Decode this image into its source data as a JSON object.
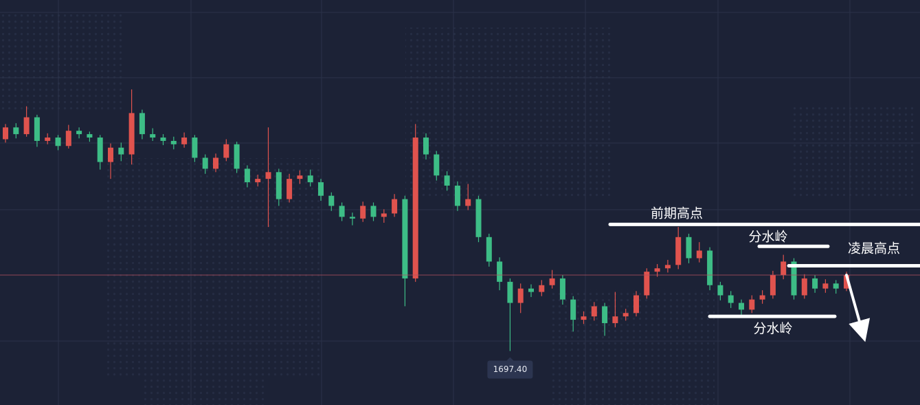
{
  "chart_data": {
    "type": "candlestick",
    "ylim": [
      1691,
      1739
    ],
    "up_color": "#e0534e",
    "down_color": "#3dbd86",
    "open": [
      1722.5,
      1723.9,
      1723.1,
      1725.1,
      1722.3,
      1722.7,
      1721.7,
      1723.5,
      1723.1,
      1722.7,
      1719.8,
      1721.5,
      1720.7,
      1725.6,
      1723.1,
      1722.7,
      1722.3,
      1721.9,
      1722.7,
      1720.3,
      1719.0,
      1720.3,
      1721.9,
      1719.0,
      1717.4,
      1717.8,
      1718.6,
      1715.4,
      1717.8,
      1718.2,
      1717.4,
      1715.8,
      1714.6,
      1713.3,
      1713.1,
      1714.6,
      1713.3,
      1713.7,
      1715.4,
      1706.0,
      1722.7,
      1720.7,
      1718.2,
      1717.0,
      1714.6,
      1715.4,
      1710.9,
      1708.0,
      1705.6,
      1703.1,
      1704.8,
      1704.4,
      1705.2,
      1706.0,
      1703.5,
      1701.1,
      1701.5,
      1702.7,
      1700.7,
      1701.5,
      1701.9,
      1704.0,
      1706.8,
      1707.2,
      1707.6,
      1710.9,
      1708.4,
      1709.3,
      1705.2,
      1704.0,
      1703.1,
      1702.3,
      1703.5,
      1704.0,
      1706.4,
      1708.0,
      1704.0,
      1706.0,
      1704.8,
      1705.4,
      1704.8
    ],
    "high": [
      1724.3,
      1724.4,
      1726.4,
      1725.4,
      1723.2,
      1723.0,
      1724.2,
      1723.9,
      1723.4,
      1723.0,
      1722.0,
      1722.1,
      1728.4,
      1726.0,
      1723.8,
      1723.1,
      1722.8,
      1723.3,
      1723.0,
      1720.7,
      1720.8,
      1722.5,
      1722.2,
      1719.4,
      1718.3,
      1723.9,
      1719.0,
      1718.4,
      1718.8,
      1718.9,
      1717.8,
      1716.2,
      1715.0,
      1713.8,
      1715.1,
      1715.0,
      1714.2,
      1716.0,
      1715.8,
      1724.3,
      1723.2,
      1721.1,
      1718.7,
      1717.5,
      1717.2,
      1715.8,
      1711.3,
      1708.5,
      1706.0,
      1705.4,
      1705.3,
      1705.8,
      1707.0,
      1706.4,
      1703.9,
      1702.1,
      1703.2,
      1703.1,
      1704.4,
      1702.4,
      1704.5,
      1707.2,
      1707.7,
      1708.2,
      1712.1,
      1711.3,
      1710.3,
      1709.7,
      1705.6,
      1704.5,
      1703.5,
      1704.0,
      1704.6,
      1706.9,
      1708.8,
      1708.4,
      1706.5,
      1706.4,
      1705.9,
      1705.8,
      1706.8
    ],
    "low": [
      1722.1,
      1722.6,
      1722.8,
      1721.6,
      1721.9,
      1721.2,
      1721.4,
      1722.6,
      1722.2,
      1718.9,
      1717.8,
      1719.9,
      1719.5,
      1722.5,
      1722.3,
      1721.8,
      1721.3,
      1721.5,
      1719.8,
      1718.4,
      1718.6,
      1719.9,
      1718.5,
      1716.8,
      1716.9,
      1712.1,
      1714.6,
      1715.0,
      1717.2,
      1716.9,
      1715.2,
      1714.0,
      1712.8,
      1712.3,
      1712.7,
      1712.8,
      1712.6,
      1713.3,
      1702.7,
      1705.6,
      1720.1,
      1717.6,
      1716.4,
      1714.0,
      1714.1,
      1710.3,
      1707.4,
      1704.6,
      1697.4,
      1701.9,
      1703.8,
      1703.9,
      1704.8,
      1702.9,
      1699.7,
      1700.6,
      1701.0,
      1699.2,
      1700.2,
      1701.0,
      1701.5,
      1703.6,
      1706.2,
      1706.7,
      1707.1,
      1707.8,
      1707.9,
      1704.6,
      1703.4,
      1702.5,
      1701.7,
      1701.9,
      1703.0,
      1703.6,
      1705.9,
      1703.5,
      1703.6,
      1704.3,
      1704.3,
      1704.2,
      1704.5
    ],
    "close": [
      1723.9,
      1723.1,
      1725.1,
      1722.3,
      1722.7,
      1721.7,
      1723.5,
      1723.1,
      1722.7,
      1719.8,
      1721.5,
      1720.7,
      1725.6,
      1723.1,
      1722.7,
      1722.3,
      1721.9,
      1722.7,
      1720.3,
      1719.0,
      1720.3,
      1721.9,
      1719.0,
      1717.4,
      1717.8,
      1718.6,
      1715.4,
      1717.8,
      1718.2,
      1717.4,
      1715.8,
      1714.6,
      1713.3,
      1713.1,
      1714.6,
      1713.3,
      1713.7,
      1715.4,
      1706.0,
      1722.7,
      1720.7,
      1718.2,
      1717.0,
      1714.6,
      1715.4,
      1710.9,
      1708.0,
      1705.6,
      1703.1,
      1704.8,
      1704.4,
      1705.2,
      1706.0,
      1703.5,
      1701.1,
      1701.5,
      1702.7,
      1700.7,
      1701.5,
      1701.9,
      1704.0,
      1706.8,
      1707.2,
      1707.6,
      1710.9,
      1708.4,
      1709.3,
      1705.2,
      1704.0,
      1703.1,
      1702.3,
      1703.5,
      1704.0,
      1706.4,
      1708.0,
      1704.0,
      1706.0,
      1704.8,
      1705.4,
      1704.8,
      1706.4
    ],
    "low_marker": {
      "value": 1697.4,
      "label": "1697.40"
    },
    "annotations": [
      {
        "text": "前期高点",
        "level": 1712.4
      },
      {
        "text": "分水岭",
        "level": 1709.8
      },
      {
        "text": "凌晨高点",
        "level": 1707.5
      },
      {
        "text": "分水岭",
        "level": 1701.5
      }
    ]
  }
}
